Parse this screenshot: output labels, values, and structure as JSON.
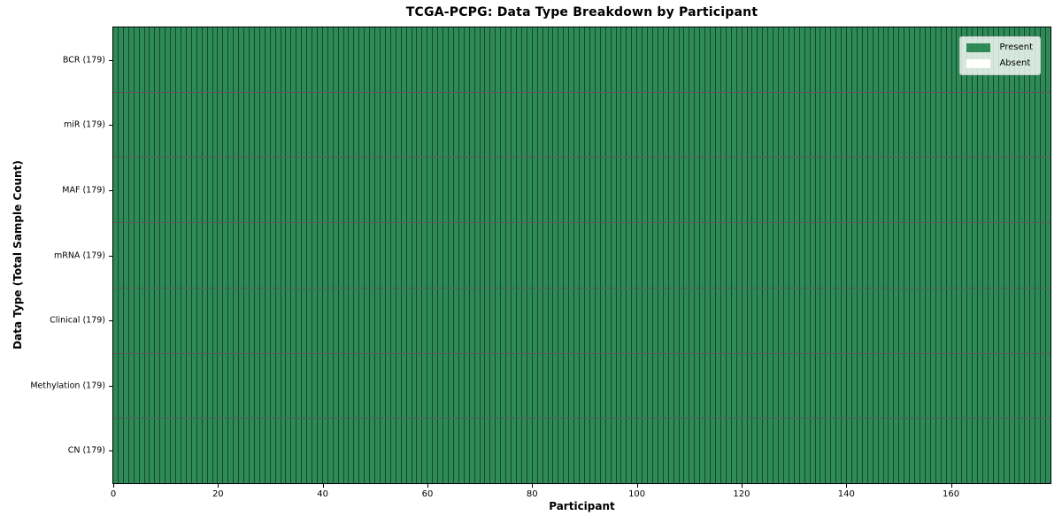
{
  "chart_data": {
    "type": "heatmap",
    "title": "TCGA-PCPG: Data Type Breakdown by Participant",
    "xlabel": "Participant",
    "ylabel": "Data Type (Total Sample Count)",
    "n_participants": 179,
    "xlim": [
      0,
      179
    ],
    "x_ticks": [
      0,
      20,
      40,
      60,
      80,
      100,
      120,
      140,
      160
    ],
    "grid": "cell-borders",
    "colors": {
      "present": "#2e8b57",
      "absent": "#ffffff",
      "cell_edge": "rgba(0,0,0,0.5)",
      "row_divider": "rgba(0,0,0,0.65)",
      "spine": "#000000",
      "legend_border": "#c8c8c8"
    },
    "rows": [
      {
        "label": "BCR (179)",
        "data_type": "BCR",
        "total_samples": 179,
        "present_count": 179,
        "absent_indices": []
      },
      {
        "label": "miR (179)",
        "data_type": "miR",
        "total_samples": 179,
        "present_count": 179,
        "absent_indices": []
      },
      {
        "label": "MAF (179)",
        "data_type": "MAF",
        "total_samples": 179,
        "present_count": 179,
        "absent_indices": []
      },
      {
        "label": "mRNA (179)",
        "data_type": "mRNA",
        "total_samples": 179,
        "present_count": 179,
        "absent_indices": []
      },
      {
        "label": "Clinical (179)",
        "data_type": "Clinical",
        "total_samples": 179,
        "present_count": 179,
        "absent_indices": []
      },
      {
        "label": "Methylation (179)",
        "data_type": "Methylation",
        "total_samples": 179,
        "present_count": 179,
        "absent_indices": []
      },
      {
        "label": "CN (179)",
        "data_type": "CN",
        "total_samples": 179,
        "present_count": 179,
        "absent_indices": []
      }
    ],
    "legend": {
      "position": "upper-right",
      "entries": [
        {
          "label": "Present",
          "color": "#2e8b57"
        },
        {
          "label": "Absent",
          "color": "#ffffff"
        }
      ]
    }
  }
}
